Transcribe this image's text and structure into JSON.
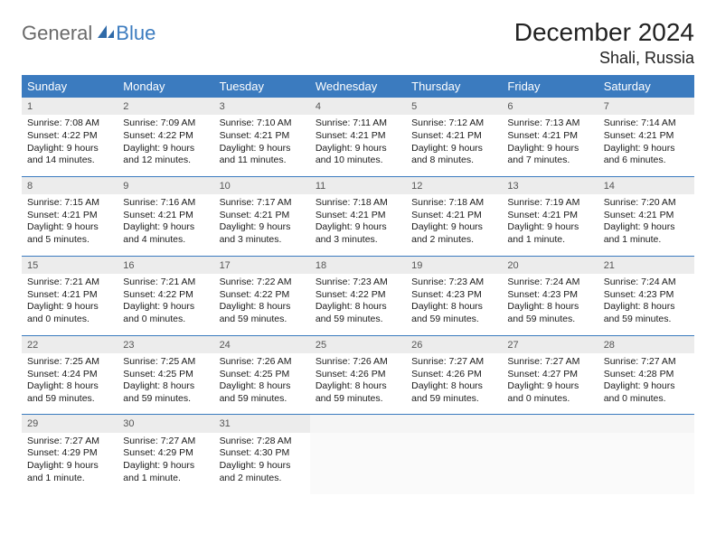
{
  "logo": {
    "word1": "General",
    "word2": "Blue"
  },
  "title": "December 2024",
  "location": "Shali, Russia",
  "colors": {
    "header_bg": "#3b7bbf",
    "header_text": "#ffffff",
    "daynum_bg": "#ececec",
    "row_border": "#3b7bbf",
    "logo_gray": "#6a6a6a",
    "logo_blue": "#3b7bbf"
  },
  "weekdays": [
    "Sunday",
    "Monday",
    "Tuesday",
    "Wednesday",
    "Thursday",
    "Friday",
    "Saturday"
  ],
  "weeks": [
    {
      "nums": [
        "1",
        "2",
        "3",
        "4",
        "5",
        "6",
        "7"
      ],
      "cells": [
        {
          "sunrise": "Sunrise: 7:08 AM",
          "sunset": "Sunset: 4:22 PM",
          "day1": "Daylight: 9 hours",
          "day2": "and 14 minutes."
        },
        {
          "sunrise": "Sunrise: 7:09 AM",
          "sunset": "Sunset: 4:22 PM",
          "day1": "Daylight: 9 hours",
          "day2": "and 12 minutes."
        },
        {
          "sunrise": "Sunrise: 7:10 AM",
          "sunset": "Sunset: 4:21 PM",
          "day1": "Daylight: 9 hours",
          "day2": "and 11 minutes."
        },
        {
          "sunrise": "Sunrise: 7:11 AM",
          "sunset": "Sunset: 4:21 PM",
          "day1": "Daylight: 9 hours",
          "day2": "and 10 minutes."
        },
        {
          "sunrise": "Sunrise: 7:12 AM",
          "sunset": "Sunset: 4:21 PM",
          "day1": "Daylight: 9 hours",
          "day2": "and 8 minutes."
        },
        {
          "sunrise": "Sunrise: 7:13 AM",
          "sunset": "Sunset: 4:21 PM",
          "day1": "Daylight: 9 hours",
          "day2": "and 7 minutes."
        },
        {
          "sunrise": "Sunrise: 7:14 AM",
          "sunset": "Sunset: 4:21 PM",
          "day1": "Daylight: 9 hours",
          "day2": "and 6 minutes."
        }
      ]
    },
    {
      "nums": [
        "8",
        "9",
        "10",
        "11",
        "12",
        "13",
        "14"
      ],
      "cells": [
        {
          "sunrise": "Sunrise: 7:15 AM",
          "sunset": "Sunset: 4:21 PM",
          "day1": "Daylight: 9 hours",
          "day2": "and 5 minutes."
        },
        {
          "sunrise": "Sunrise: 7:16 AM",
          "sunset": "Sunset: 4:21 PM",
          "day1": "Daylight: 9 hours",
          "day2": "and 4 minutes."
        },
        {
          "sunrise": "Sunrise: 7:17 AM",
          "sunset": "Sunset: 4:21 PM",
          "day1": "Daylight: 9 hours",
          "day2": "and 3 minutes."
        },
        {
          "sunrise": "Sunrise: 7:18 AM",
          "sunset": "Sunset: 4:21 PM",
          "day1": "Daylight: 9 hours",
          "day2": "and 3 minutes."
        },
        {
          "sunrise": "Sunrise: 7:18 AM",
          "sunset": "Sunset: 4:21 PM",
          "day1": "Daylight: 9 hours",
          "day2": "and 2 minutes."
        },
        {
          "sunrise": "Sunrise: 7:19 AM",
          "sunset": "Sunset: 4:21 PM",
          "day1": "Daylight: 9 hours",
          "day2": "and 1 minute."
        },
        {
          "sunrise": "Sunrise: 7:20 AM",
          "sunset": "Sunset: 4:21 PM",
          "day1": "Daylight: 9 hours",
          "day2": "and 1 minute."
        }
      ]
    },
    {
      "nums": [
        "15",
        "16",
        "17",
        "18",
        "19",
        "20",
        "21"
      ],
      "cells": [
        {
          "sunrise": "Sunrise: 7:21 AM",
          "sunset": "Sunset: 4:21 PM",
          "day1": "Daylight: 9 hours",
          "day2": "and 0 minutes."
        },
        {
          "sunrise": "Sunrise: 7:21 AM",
          "sunset": "Sunset: 4:22 PM",
          "day1": "Daylight: 9 hours",
          "day2": "and 0 minutes."
        },
        {
          "sunrise": "Sunrise: 7:22 AM",
          "sunset": "Sunset: 4:22 PM",
          "day1": "Daylight: 8 hours",
          "day2": "and 59 minutes."
        },
        {
          "sunrise": "Sunrise: 7:23 AM",
          "sunset": "Sunset: 4:22 PM",
          "day1": "Daylight: 8 hours",
          "day2": "and 59 minutes."
        },
        {
          "sunrise": "Sunrise: 7:23 AM",
          "sunset": "Sunset: 4:23 PM",
          "day1": "Daylight: 8 hours",
          "day2": "and 59 minutes."
        },
        {
          "sunrise": "Sunrise: 7:24 AM",
          "sunset": "Sunset: 4:23 PM",
          "day1": "Daylight: 8 hours",
          "day2": "and 59 minutes."
        },
        {
          "sunrise": "Sunrise: 7:24 AM",
          "sunset": "Sunset: 4:23 PM",
          "day1": "Daylight: 8 hours",
          "day2": "and 59 minutes."
        }
      ]
    },
    {
      "nums": [
        "22",
        "23",
        "24",
        "25",
        "26",
        "27",
        "28"
      ],
      "cells": [
        {
          "sunrise": "Sunrise: 7:25 AM",
          "sunset": "Sunset: 4:24 PM",
          "day1": "Daylight: 8 hours",
          "day2": "and 59 minutes."
        },
        {
          "sunrise": "Sunrise: 7:25 AM",
          "sunset": "Sunset: 4:25 PM",
          "day1": "Daylight: 8 hours",
          "day2": "and 59 minutes."
        },
        {
          "sunrise": "Sunrise: 7:26 AM",
          "sunset": "Sunset: 4:25 PM",
          "day1": "Daylight: 8 hours",
          "day2": "and 59 minutes."
        },
        {
          "sunrise": "Sunrise: 7:26 AM",
          "sunset": "Sunset: 4:26 PM",
          "day1": "Daylight: 8 hours",
          "day2": "and 59 minutes."
        },
        {
          "sunrise": "Sunrise: 7:27 AM",
          "sunset": "Sunset: 4:26 PM",
          "day1": "Daylight: 8 hours",
          "day2": "and 59 minutes."
        },
        {
          "sunrise": "Sunrise: 7:27 AM",
          "sunset": "Sunset: 4:27 PM",
          "day1": "Daylight: 9 hours",
          "day2": "and 0 minutes."
        },
        {
          "sunrise": "Sunrise: 7:27 AM",
          "sunset": "Sunset: 4:28 PM",
          "day1": "Daylight: 9 hours",
          "day2": "and 0 minutes."
        }
      ]
    },
    {
      "nums": [
        "29",
        "30",
        "31",
        "",
        "",
        "",
        ""
      ],
      "cells": [
        {
          "sunrise": "Sunrise: 7:27 AM",
          "sunset": "Sunset: 4:29 PM",
          "day1": "Daylight: 9 hours",
          "day2": "and 1 minute."
        },
        {
          "sunrise": "Sunrise: 7:27 AM",
          "sunset": "Sunset: 4:29 PM",
          "day1": "Daylight: 9 hours",
          "day2": "and 1 minute."
        },
        {
          "sunrise": "Sunrise: 7:28 AM",
          "sunset": "Sunset: 4:30 PM",
          "day1": "Daylight: 9 hours",
          "day2": "and 2 minutes."
        },
        null,
        null,
        null,
        null
      ]
    }
  ]
}
